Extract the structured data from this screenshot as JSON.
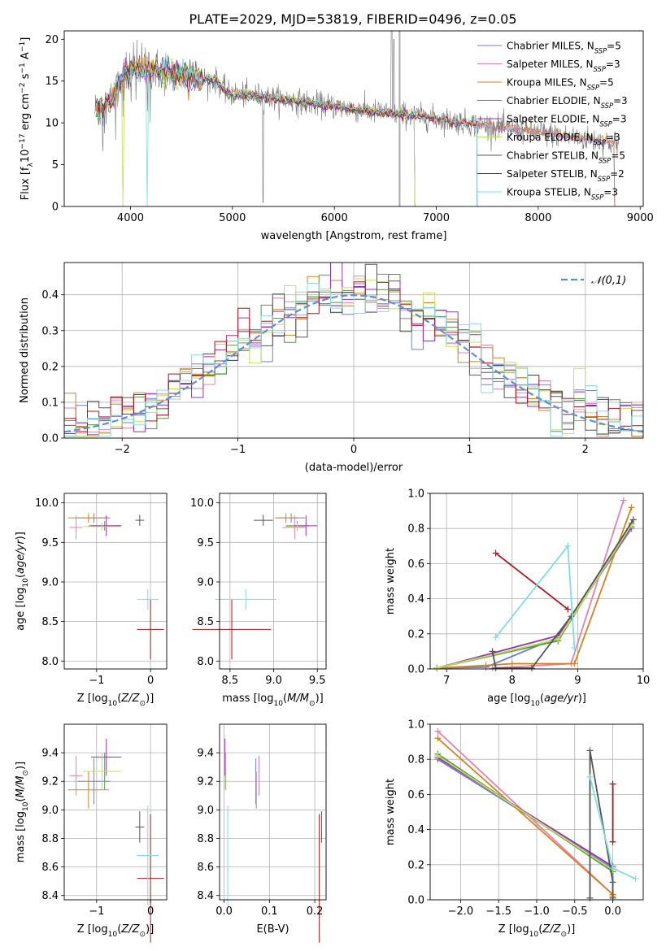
{
  "figure": {
    "title": "PLATE=2029, MJD=53819, FIBERID=0496, z=0.05"
  },
  "models": [
    {
      "name": "Chabrier MILES",
      "nssp": "5",
      "color": "#6f7fd8"
    },
    {
      "name": "Salpeter MILES",
      "nssp": "3",
      "color": "#e580b0"
    },
    {
      "name": "Kroupa MILES",
      "nssp": "5",
      "color": "#d4821f"
    },
    {
      "name": "Chabrier ELODIE",
      "nssp": "3",
      "color": "#4f9a3f"
    },
    {
      "name": "Salpeter ELODIE",
      "nssp": "3",
      "color": "#9b2fb8"
    },
    {
      "name": "Kroupa ELODIE",
      "nssp": "3",
      "color": "#c2e054"
    },
    {
      "name": "Chabrier STELIB",
      "nssp": "5",
      "color": "#555555"
    },
    {
      "name": "Salpeter STELIB",
      "nssp": "2",
      "color": "#b0141d"
    },
    {
      "name": "Kroupa STELIB",
      "nssp": "3",
      "color": "#7fdde0"
    }
  ],
  "chart_data": [
    {
      "type": "line",
      "panel": "spectrum",
      "xlabel": "wavelength [Angstrom, rest frame]",
      "ylabel": "Flux [f_λ 10^-17 erg cm^-2 s^-1 A^-1]",
      "xlim": [
        3350,
        9030
      ],
      "ylim": [
        0,
        21
      ],
      "xticks": [
        "4000",
        "5000",
        "6000",
        "7000",
        "8000",
        "9000"
      ],
      "yticks": [
        "0",
        "5",
        "10",
        "15",
        "20"
      ],
      "continuum": {
        "x": [
          3650,
          3800,
          3950,
          4050,
          4200,
          4400,
          4600,
          4850,
          4950,
          5200,
          5500,
          5800,
          6100,
          6400,
          6700,
          7000,
          7300,
          7600,
          7900,
          8200,
          8500,
          8800
        ],
        "y": [
          11.5,
          12.5,
          16.0,
          16.5,
          16.5,
          16.0,
          15.5,
          15.0,
          13.5,
          13.3,
          12.8,
          12.3,
          11.8,
          11.3,
          11.0,
          10.5,
          10.0,
          9.5,
          9.0,
          8.5,
          8.0,
          7.5
        ]
      },
      "model_end_x": [
        8750,
        8750,
        8750,
        6790,
        6790,
        6790,
        7400,
        7400,
        7400
      ],
      "grid": false,
      "legend": "top-right"
    },
    {
      "type": "histogram",
      "panel": "residuals",
      "xlabel": "(data-model)/error",
      "ylabel": "Normed distribution",
      "xlim": [
        -2.5,
        2.5
      ],
      "ylim": [
        0,
        0.49
      ],
      "xticks": [
        "-2",
        "-1",
        "0",
        "1",
        "2"
      ],
      "yticks": [
        "0.0",
        "0.1",
        "0.2",
        "0.3",
        "0.4"
      ],
      "bin_width": 0.1,
      "reference": {
        "label": "𝒩(0,1)",
        "mu": 0,
        "sigma": 1,
        "color": "#5b8fd6"
      },
      "grid": true,
      "legend": "top-right"
    },
    {
      "type": "scatter",
      "panel": "age-vs-Z",
      "xlabel": "Z [log10(Z/Z⊙)]",
      "ylabel": "age [log10(age/yr)]",
      "xlim": [
        -1.6,
        0.3
      ],
      "ylim": [
        7.9,
        10.12
      ],
      "xticks": [
        "-1",
        "0"
      ],
      "yticks": [
        "8.0",
        "8.5",
        "9.0",
        "9.5",
        "10.0"
      ],
      "points": [
        {
          "m": 0,
          "x": -1.05,
          "xerr": 0.3,
          "y": 9.81,
          "yerr": 0.06
        },
        {
          "m": 1,
          "x": -1.38,
          "xerr": 0.12,
          "y": 9.69,
          "yerr": 0.15
        },
        {
          "m": 2,
          "x": -1.15,
          "xerr": 0.38,
          "y": 9.81,
          "yerr": 0.06
        },
        {
          "m": 3,
          "x": -0.85,
          "xerr": 0.3,
          "y": 9.71,
          "yerr": 0.06
        },
        {
          "m": 4,
          "x": -0.82,
          "xerr": 0.28,
          "y": 9.71,
          "yerr": 0.13
        },
        {
          "m": 5,
          "x": -0.9,
          "xerr": 0.35,
          "y": 9.7,
          "yerr": 0.05
        },
        {
          "m": 6,
          "x": -0.2,
          "xerr": 0.08,
          "y": 9.78,
          "yerr": 0.07
        },
        {
          "m": 7,
          "x": 0.0,
          "xerr": 0.25,
          "y": 8.4,
          "yerr": 0.38
        },
        {
          "m": 8,
          "x": -0.05,
          "xerr": 0.2,
          "y": 8.78,
          "yerr": 0.13
        }
      ]
    },
    {
      "type": "scatter",
      "panel": "age-vs-mass",
      "xlabel": "mass [log10(M/M⊙)]",
      "ylabel": "",
      "xlim": [
        8.38,
        9.6
      ],
      "ylim": [
        7.9,
        10.12
      ],
      "xticks": [
        "8.5",
        "9.0",
        "9.5"
      ],
      "yticks": [
        "8.0",
        "8.5",
        "9.0",
        "9.5",
        "10.0"
      ],
      "points": [
        {
          "m": 0,
          "x": 9.2,
          "xerr": 0.16,
          "y": 9.81,
          "yerr": 0.06
        },
        {
          "m": 1,
          "x": 9.24,
          "xerr": 0.14,
          "y": 9.69,
          "yerr": 0.15
        },
        {
          "m": 2,
          "x": 9.14,
          "xerr": 0.13,
          "y": 9.81,
          "yerr": 0.06
        },
        {
          "m": 3,
          "x": 9.27,
          "xerr": 0.13,
          "y": 9.71,
          "yerr": 0.06
        },
        {
          "m": 4,
          "x": 9.37,
          "xerr": 0.13,
          "y": 9.71,
          "yerr": 0.13
        },
        {
          "m": 5,
          "x": 9.27,
          "xerr": 0.13,
          "y": 9.7,
          "yerr": 0.05
        },
        {
          "m": 6,
          "x": 8.88,
          "xerr": 0.11,
          "y": 9.78,
          "yerr": 0.07
        },
        {
          "m": 7,
          "x": 8.52,
          "xerr": 0.45,
          "y": 8.4,
          "yerr": 0.38
        },
        {
          "m": 8,
          "x": 8.68,
          "xerr": 0.35,
          "y": 8.78,
          "yerr": 0.13
        }
      ]
    },
    {
      "type": "line",
      "panel": "mass-weight-vs-age",
      "xlabel": "age [log10(age/yr)]",
      "ylabel": "mass weight",
      "xlim": [
        6.75,
        10.0
      ],
      "ylim": [
        0,
        1
      ],
      "xticks": [
        "7",
        "8",
        "9",
        "10"
      ],
      "yticks": [
        "0.0",
        "0.2",
        "0.4",
        "0.6",
        "0.8",
        "1.0"
      ],
      "series": [
        {
          "m": 0,
          "x": [
            6.85,
            7.6,
            8.7,
            9.82
          ],
          "y": [
            0.005,
            0.01,
            0.18,
            0.8
          ]
        },
        {
          "m": 1,
          "x": [
            7.7,
            8.9,
            9.7
          ],
          "y": [
            0.005,
            0.03,
            0.96
          ]
        },
        {
          "m": 2,
          "x": [
            6.85,
            7.6,
            8.0,
            8.95,
            9.82
          ],
          "y": [
            0.005,
            0.02,
            0.03,
            0.03,
            0.92
          ]
        },
        {
          "m": 3,
          "x": [
            6.85,
            8.7,
            9.82
          ],
          "y": [
            0.005,
            0.16,
            0.83
          ]
        },
        {
          "m": 4,
          "x": [
            6.85,
            8.7,
            9.82
          ],
          "y": [
            0.005,
            0.19,
            0.81
          ]
        },
        {
          "m": 5,
          "x": [
            6.85,
            8.7,
            9.82
          ],
          "y": [
            0.005,
            0.17,
            0.82
          ]
        },
        {
          "m": 6,
          "x": [
            7.7,
            7.75,
            8.3,
            8.9,
            9.85
          ],
          "y": [
            0.1,
            0.005,
            0.005,
            0.3,
            0.85
          ]
        },
        {
          "m": 7,
          "x": [
            7.75,
            8.85
          ],
          "y": [
            0.66,
            0.34
          ]
        },
        {
          "m": 8,
          "x": [
            7.75,
            8.85,
            8.95
          ],
          "y": [
            0.18,
            0.7,
            0.12
          ]
        }
      ]
    },
    {
      "type": "scatter",
      "panel": "mass-vs-Z",
      "xlabel": "Z [log10(Z/Z⊙)]",
      "ylabel": "mass [log10(M/M⊙)]",
      "xlim": [
        -1.6,
        0.3
      ],
      "ylim": [
        8.37,
        9.6
      ],
      "xticks": [
        "-1",
        "0"
      ],
      "yticks": [
        "8.4",
        "8.6",
        "8.8",
        "9.0",
        "9.2",
        "9.4"
      ],
      "points": [
        {
          "m": 0,
          "x": -1.05,
          "xerr": 0.3,
          "y": 9.2,
          "yerr": 0.16
        },
        {
          "m": 1,
          "x": -1.38,
          "xerr": 0.12,
          "y": 9.24,
          "yerr": 0.14
        },
        {
          "m": 2,
          "x": -1.15,
          "xerr": 0.38,
          "y": 9.14,
          "yerr": 0.13
        },
        {
          "m": 3,
          "x": -0.85,
          "xerr": 0.3,
          "y": 9.27,
          "yerr": 0.13
        },
        {
          "m": 4,
          "x": -0.82,
          "xerr": 0.28,
          "y": 9.37,
          "yerr": 0.13
        },
        {
          "m": 5,
          "x": -0.9,
          "xerr": 0.35,
          "y": 9.27,
          "yerr": 0.13
        },
        {
          "m": 6,
          "x": -0.2,
          "xerr": 0.08,
          "y": 8.88,
          "yerr": 0.11
        },
        {
          "m": 7,
          "x": 0.0,
          "xerr": 0.25,
          "y": 8.52,
          "yerr": 0.45
        },
        {
          "m": 8,
          "x": -0.05,
          "xerr": 0.2,
          "y": 8.68,
          "yerr": 0.35
        }
      ]
    },
    {
      "type": "scatter",
      "panel": "mass-vs-EBV",
      "xlabel": "E(B-V)",
      "ylabel": "",
      "xlim": [
        -0.01,
        0.225
      ],
      "ylim": [
        8.37,
        9.6
      ],
      "xticks": [
        "0.0",
        "0.1",
        "0.2"
      ],
      "yticks": [
        "8.4",
        "8.6",
        "8.8",
        "9.0",
        "9.2",
        "9.4"
      ],
      "points": [
        {
          "m": 0,
          "x": 0.07,
          "xerr": 0,
          "y": 9.2,
          "yerr": 0.16
        },
        {
          "m": 1,
          "x": 0.077,
          "xerr": 0,
          "y": 9.24,
          "yerr": 0.14
        },
        {
          "m": 2,
          "x": 0.071,
          "xerr": 0,
          "y": 9.14,
          "yerr": 0.13
        },
        {
          "m": 3,
          "x": 0.003,
          "xerr": 0,
          "y": 9.27,
          "yerr": 0.13
        },
        {
          "m": 4,
          "x": 0.002,
          "xerr": 0,
          "y": 9.37,
          "yerr": 0.13
        },
        {
          "m": 5,
          "x": 0.004,
          "xerr": 0,
          "y": 9.27,
          "yerr": 0.13
        },
        {
          "m": 6,
          "x": 0.215,
          "xerr": 0,
          "y": 8.88,
          "yerr": 0.11
        },
        {
          "m": 7,
          "x": 0.21,
          "xerr": 0,
          "y": 8.52,
          "yerr": 0.45
        },
        {
          "m": 8,
          "x": 0.008,
          "xerr": 0,
          "y": 8.68,
          "yerr": 0.35
        }
      ]
    },
    {
      "type": "line",
      "panel": "mass-weight-vs-Z",
      "xlabel": "Z [log10(Z/Z⊙)]",
      "ylabel": "mass weight",
      "xlim": [
        -2.4,
        0.4
      ],
      "ylim": [
        0,
        1
      ],
      "xticks": [
        "-2.0",
        "-1.5",
        "-1.0",
        "-0.5",
        "0.0"
      ],
      "yticks": [
        "0.0",
        "0.2",
        "0.4",
        "0.6",
        "0.8",
        "1.0"
      ],
      "series": [
        {
          "m": 0,
          "x": [
            -2.3,
            0.0,
            0.0
          ],
          "y": [
            0.8,
            0.18,
            0.01
          ]
        },
        {
          "m": 1,
          "x": [
            -2.3,
            0.0
          ],
          "y": [
            0.96,
            0.03
          ]
        },
        {
          "m": 2,
          "x": [
            -2.3,
            0.0,
            0.0
          ],
          "y": [
            0.92,
            0.03,
            0.02
          ]
        },
        {
          "m": 3,
          "x": [
            -2.3,
            0.0
          ],
          "y": [
            0.83,
            0.16
          ]
        },
        {
          "m": 4,
          "x": [
            -2.3,
            0.0
          ],
          "y": [
            0.81,
            0.19
          ]
        },
        {
          "m": 5,
          "x": [
            -2.3,
            0.0
          ],
          "y": [
            0.82,
            0.17
          ]
        },
        {
          "m": 6,
          "x": [
            -0.3,
            -0.3,
            0.0,
            0.0
          ],
          "y": [
            0.01,
            0.85,
            0.1,
            0.01
          ]
        },
        {
          "m": 7,
          "x": [
            0.0,
            0.0
          ],
          "y": [
            0.33,
            0.66
          ]
        },
        {
          "m": 8,
          "x": [
            -0.3,
            0.0,
            0.3
          ],
          "y": [
            0.7,
            0.18,
            0.12
          ]
        }
      ]
    }
  ]
}
